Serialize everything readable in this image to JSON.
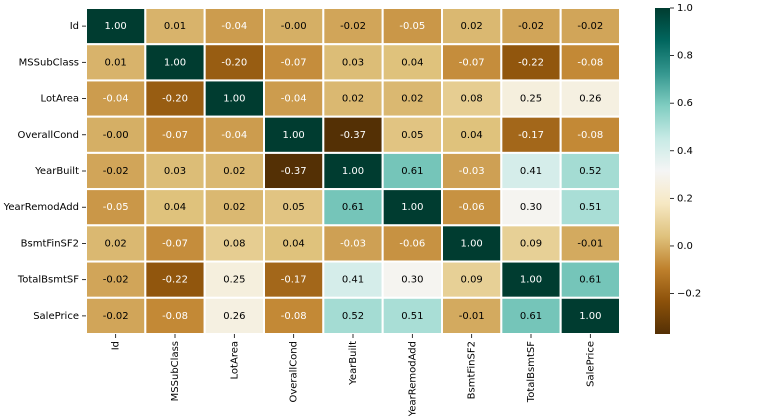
{
  "chart_data": {
    "type": "heatmap",
    "x_categories": [
      "Id",
      "MSSubClass",
      "LotArea",
      "OverallCond",
      "YearBuilt",
      "YearRemodAdd",
      "BsmtFinSF2",
      "TotalBsmtSF",
      "SalePrice"
    ],
    "y_categories": [
      "Id",
      "MSSubClass",
      "LotArea",
      "OverallCond",
      "YearBuilt",
      "YearRemodAdd",
      "BsmtFinSF2",
      "TotalBsmtSF",
      "SalePrice"
    ],
    "values": [
      [
        1,
        0.01,
        -0.04,
        0,
        -0.02,
        -0.05,
        0.02,
        -0.02,
        -0.02
      ],
      [
        0.01,
        1,
        -0.2,
        -0.07,
        0.03,
        0.04,
        -0.07,
        -0.22,
        -0.08
      ],
      [
        -0.04,
        -0.2,
        1,
        -0.04,
        0.02,
        0.02,
        0.08,
        0.25,
        0.26
      ],
      [
        0,
        -0.07,
        -0.04,
        1,
        -0.37,
        0.05,
        0.04,
        -0.17,
        -0.08
      ],
      [
        -0.02,
        0.03,
        0.02,
        -0.37,
        1,
        0.61,
        -0.03,
        0.41,
        0.52
      ],
      [
        -0.05,
        0.04,
        0.02,
        0.05,
        0.61,
        1,
        -0.06,
        0.3,
        0.51
      ],
      [
        0.02,
        -0.07,
        0.08,
        0.04,
        -0.03,
        -0.06,
        1,
        0.09,
        -0.01
      ],
      [
        -0.02,
        -0.22,
        0.25,
        -0.17,
        0.41,
        0.3,
        0.09,
        1,
        0.61
      ],
      [
        -0.02,
        -0.08,
        0.26,
        -0.08,
        0.52,
        0.51,
        -0.01,
        0.61,
        1
      ]
    ],
    "value_labels": [
      [
        "1.00",
        "0.01",
        "-0.04",
        "-0.00",
        "-0.02",
        "-0.05",
        "0.02",
        "-0.02",
        "-0.02"
      ],
      [
        "0.01",
        "1.00",
        "-0.20",
        "-0.07",
        "0.03",
        "0.04",
        "-0.07",
        "-0.22",
        "-0.08"
      ],
      [
        "-0.04",
        "-0.20",
        "1.00",
        "-0.04",
        "0.02",
        "0.02",
        "0.08",
        "0.25",
        "0.26"
      ],
      [
        "-0.00",
        "-0.07",
        "-0.04",
        "1.00",
        "-0.37",
        "0.05",
        "0.04",
        "-0.17",
        "-0.08"
      ],
      [
        "-0.02",
        "0.03",
        "0.02",
        "-0.37",
        "1.00",
        "0.61",
        "-0.03",
        "0.41",
        "0.52"
      ],
      [
        "-0.05",
        "0.04",
        "0.02",
        "0.05",
        "0.61",
        "1.00",
        "-0.06",
        "0.30",
        "0.51"
      ],
      [
        "0.02",
        "-0.07",
        "0.08",
        "0.04",
        "-0.03",
        "-0.06",
        "1.00",
        "0.09",
        "-0.01"
      ],
      [
        "-0.02",
        "-0.22",
        "0.25",
        "-0.17",
        "0.41",
        "0.30",
        "0.09",
        "1.00",
        "0.61"
      ],
      [
        "-0.02",
        "-0.08",
        "0.26",
        "-0.08",
        "0.52",
        "0.51",
        "-0.01",
        "0.61",
        "1.00"
      ]
    ],
    "colormap": [
      "#543005",
      "#8c510a",
      "#bf812d",
      "#dfc27d",
      "#f6e8c3",
      "#f5f5f5",
      "#c7eae5",
      "#80cdc1",
      "#35978f",
      "#01665e",
      "#003c30"
    ],
    "clim": [
      -0.37,
      1
    ],
    "cticks": [
      {
        "value": -0.2,
        "label": "−0.2"
      },
      {
        "value": 0,
        "label": "0.0"
      },
      0.2,
      0.4,
      0.6,
      0.8,
      {
        "value": 1,
        "label": "1.0"
      }
    ]
  }
}
